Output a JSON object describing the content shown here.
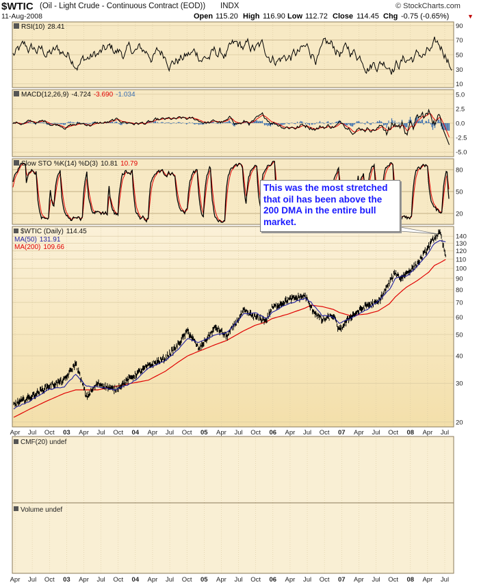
{
  "header": {
    "symbol": "$WTIC",
    "description": "(Oil - Light Crude - Continuous Contract (EOD))",
    "exchange": "INDX",
    "date": "11-Aug-2008",
    "open_label": "Open",
    "open": "115.20",
    "high_label": "High",
    "high": "116.90",
    "low_label": "Low",
    "low": "112.72",
    "close_label": "Close",
    "close": "114.45",
    "chg_label": "Chg",
    "chg": "-0.75 (-0.65%)",
    "chg_marker": "▼",
    "source": "© StockCharts.com"
  },
  "colors": {
    "panel_bg": "#f7e9c4",
    "price_bg_top": "#fbf1d8",
    "price_bg_bottom": "#f5e2b0",
    "ma50": "#1f1fa0",
    "ma200": "#e00000",
    "price": "#000000",
    "histogram": "#3b6fb0",
    "macd_signal": "#e00000",
    "sto_d": "#e00000",
    "callout_text": "#1a1aff"
  },
  "panels": {
    "rsi": {
      "label": "RSI(10)",
      "value": "28.41",
      "ticks": [
        "90",
        "70",
        "50",
        "30",
        "10"
      ]
    },
    "macd": {
      "label": "MACD(12,26,9)",
      "value1": "-4.724",
      "value2": "-3.690",
      "value3": "-1.034",
      "ticks": [
        "5.0",
        "2.5",
        "0.0",
        "-2.5",
        "-5.0"
      ]
    },
    "sto": {
      "label": "Slow STO %K(14) %D(3)",
      "k": "10.81",
      "d": "10.79",
      "ticks": [
        "80",
        "50",
        "20"
      ]
    },
    "price": {
      "label": "$WTIC (Daily)",
      "value": "114.45",
      "ma50_label": "MA(50)",
      "ma50_value": "131.91",
      "ma200_label": "MA(200)",
      "ma200_value": "109.66"
    },
    "cmf": {
      "label": "CMF(20) undef"
    },
    "volume": {
      "label": "Volume undef"
    }
  },
  "annotation": "This was the most stretched that oil has been above the 200 DMA in the entire bull market.",
  "chart_data": {
    "type": "line",
    "title": "$WTIC (Oil - Light Crude - Continuous Contract (EOD))",
    "y_scale": "log",
    "ylim": [
      19,
      155
    ],
    "y_ticks": [
      20,
      30,
      40,
      50,
      60,
      70,
      80,
      90,
      100,
      110,
      120,
      130,
      140
    ],
    "x_ticks": [
      "Apr",
      "Jul",
      "Oct",
      "03",
      "Apr",
      "Jul",
      "Oct",
      "04",
      "Apr",
      "Jul",
      "Oct",
      "05",
      "Apr",
      "Jul",
      "Oct",
      "06",
      "Apr",
      "Jul",
      "Oct",
      "07",
      "Apr",
      "Jul",
      "Oct",
      "08",
      "Apr",
      "Jul"
    ],
    "x": [
      "2002-03",
      "2002-06",
      "2002-09",
      "2002-12",
      "2003-02",
      "2003-04",
      "2003-06",
      "2003-09",
      "2003-12",
      "2004-03",
      "2004-06",
      "2004-08",
      "2004-10",
      "2004-12",
      "2005-03",
      "2005-05",
      "2005-08",
      "2005-10",
      "2005-12",
      "2006-01",
      "2006-04",
      "2006-07",
      "2006-08",
      "2006-10",
      "2006-12",
      "2007-01",
      "2007-03",
      "2007-06",
      "2007-08",
      "2007-10",
      "2007-11",
      "2007-12",
      "2008-01",
      "2008-03",
      "2008-05",
      "2008-06",
      "2008-07",
      "2008-08"
    ],
    "series": [
      {
        "name": "$WTIC (Daily)",
        "values": [
          24,
          26,
          29,
          31,
          37,
          26,
          30,
          28,
          32,
          36,
          39,
          44,
          52,
          43,
          54,
          49,
          64,
          60,
          58,
          66,
          72,
          75,
          66,
          58,
          61,
          52,
          60,
          68,
          70,
          86,
          96,
          90,
          95,
          105,
          125,
          138,
          145,
          114
        ]
      },
      {
        "name": "MA(50)",
        "values": [
          23,
          25,
          28,
          29,
          33,
          29,
          29,
          28,
          30,
          35,
          38,
          42,
          48,
          46,
          50,
          51,
          62,
          63,
          59,
          63,
          69,
          73,
          70,
          61,
          60,
          56,
          59,
          65,
          71,
          80,
          90,
          92,
          92,
          102,
          118,
          130,
          133,
          131.91
        ]
      },
      {
        "name": "MA(200)",
        "values": [
          21,
          23,
          25,
          27,
          28,
          28,
          28,
          29,
          30,
          31,
          34,
          37,
          40,
          42,
          45,
          47,
          52,
          55,
          57,
          59,
          62,
          66,
          68,
          67,
          65,
          63,
          61,
          62,
          64,
          69,
          74,
          78,
          82,
          88,
          96,
          103,
          106,
          109.66
        ]
      }
    ]
  }
}
